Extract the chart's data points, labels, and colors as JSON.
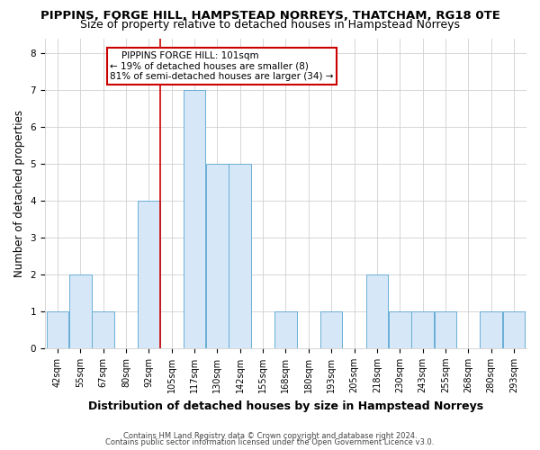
{
  "title": "PIPPINS, FORGE HILL, HAMPSTEAD NORREYS, THATCHAM, RG18 0TE",
  "subtitle": "Size of property relative to detached houses in Hampstead Norreys",
  "xlabel": "Distribution of detached houses by size in Hampstead Norreys",
  "ylabel": "Number of detached properties",
  "footnote1": "Contains HM Land Registry data © Crown copyright and database right 2024.",
  "footnote2": "Contains public sector information licensed under the Open Government Licence v3.0.",
  "bin_labels": [
    "42sqm",
    "55sqm",
    "67sqm",
    "80sqm",
    "92sqm",
    "105sqm",
    "117sqm",
    "130sqm",
    "142sqm",
    "155sqm",
    "168sqm",
    "180sqm",
    "193sqm",
    "205sqm",
    "218sqm",
    "230sqm",
    "243sqm",
    "255sqm",
    "268sqm",
    "280sqm",
    "293sqm"
  ],
  "bar_heights": [
    1,
    2,
    1,
    0,
    4,
    0,
    7,
    5,
    5,
    0,
    1,
    0,
    1,
    0,
    2,
    1,
    1,
    1,
    0,
    1,
    1
  ],
  "bar_color": "#d6e8f7",
  "bar_edge_color": "#6aaed6",
  "highlight_index": 5,
  "red_line_color": "#cc0000",
  "annotation_line1": "    PIPPINS FORGE HILL: 101sqm",
  "annotation_line2": "← 19% of detached houses are smaller (8)",
  "annotation_line3": "81% of semi-detached houses are larger (34) →",
  "annotation_box_color": "#ffffff",
  "annotation_box_edge_color": "#cc0000",
  "ylim": [
    0,
    8.4
  ],
  "yticks": [
    0,
    1,
    2,
    3,
    4,
    5,
    6,
    7,
    8
  ],
  "grid_color": "#d0d0d0",
  "background_color": "#ffffff",
  "title_fontsize": 9.5,
  "subtitle_fontsize": 9,
  "ylabel_fontsize": 8.5,
  "xlabel_fontsize": 9,
  "tick_fontsize": 7,
  "annotation_fontsize": 7.5,
  "footnote_fontsize": 6
}
